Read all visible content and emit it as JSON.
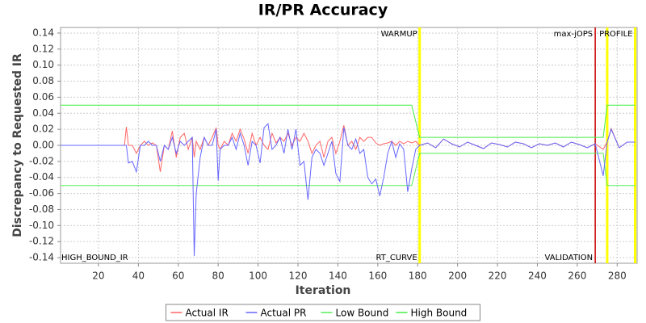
{
  "chart_data": {
    "type": "line",
    "title": "IR/PR Accuracy",
    "x_label": "Iteration",
    "y_label": "Discrepancy to Requested IR",
    "x": [
      1,
      33,
      34,
      35,
      37,
      39,
      41,
      43,
      45,
      47,
      49,
      51,
      53,
      55,
      57,
      59,
      61,
      63,
      65,
      67,
      68,
      69,
      71,
      73,
      75,
      77,
      79,
      80,
      81,
      83,
      85,
      87,
      89,
      91,
      93,
      95,
      97,
      99,
      101,
      103,
      105,
      107,
      109,
      111,
      113,
      115,
      117,
      119,
      121,
      123,
      125,
      127,
      129,
      131,
      133,
      135,
      137,
      139,
      141,
      143,
      145,
      147,
      149,
      151,
      153,
      155,
      157,
      159,
      161,
      163,
      165,
      167,
      169,
      171,
      173,
      175,
      177,
      179,
      181,
      185,
      189,
      193,
      197,
      201,
      205,
      209,
      213,
      217,
      221,
      225,
      229,
      233,
      237,
      241,
      245,
      249,
      253,
      257,
      261,
      265,
      269,
      273,
      275,
      277,
      281,
      285,
      289
    ],
    "series": [
      {
        "name": "Actual IR",
        "color": "#ff6666",
        "values": [
          0,
          0,
          0.023,
          0,
          0,
          -0.01,
          0,
          0.005,
          0,
          0.003,
          0,
          -0.033,
          0,
          -0.005,
          0.018,
          -0.015,
          0.01,
          0.015,
          -0.005,
          0.01,
          -0.015,
          0.005,
          -0.005,
          0.01,
          0,
          0.01,
          0.022,
          0,
          -0.005,
          0.005,
          0,
          0.015,
          0.005,
          0.02,
          0.008,
          -0.01,
          0.015,
          0,
          0.01,
          0,
          -0.005,
          0.015,
          0.003,
          0.01,
          0.005,
          0.015,
          0,
          0.01,
          0.005,
          0.015,
          0.005,
          -0.01,
          0,
          0.005,
          -0.015,
          0.005,
          0.01,
          -0.01,
          0.005,
          0.025,
          0,
          0.005,
          -0.005,
          0.01,
          0.005,
          0.01,
          0.01,
          0.003,
          0,
          0.002,
          0.003,
          0.005,
          0,
          0.005,
          0.002,
          0.005,
          0.003,
          0.005,
          0,
          0.003,
          -0.003,
          0.008,
          0.002,
          -0.002,
          0.004,
          0,
          -0.004,
          0.003,
          0.001,
          -0.002,
          0.004,
          0.002,
          -0.003,
          0.002,
          0,
          0.003,
          -0.002,
          0.004,
          0.001,
          -0.003,
          0.002,
          -0.005,
          0.004,
          0.021,
          -0.003,
          0.004,
          0.004
        ]
      },
      {
        "name": "Actual PR",
        "color": "#6666ff",
        "values": [
          0,
          0,
          0,
          -0.022,
          -0.02,
          -0.033,
          0,
          0,
          0.005,
          0,
          0,
          -0.02,
          0,
          -0.005,
          0.01,
          -0.01,
          0.005,
          0,
          0.005,
          0.01,
          -0.138,
          -0.06,
          -0.015,
          0.01,
          0,
          0,
          0.02,
          -0.044,
          -0.005,
          0,
          0,
          0.01,
          -0.005,
          0.015,
          0,
          -0.025,
          0.005,
          0,
          -0.022,
          0.022,
          0.027,
          -0.005,
          0,
          0.01,
          -0.01,
          0.02,
          -0.005,
          0.02,
          -0.025,
          -0.02,
          -0.068,
          -0.015,
          -0.005,
          -0.01,
          -0.025,
          -0.01,
          0.005,
          -0.035,
          -0.045,
          0.022,
          0,
          -0.005,
          0.008,
          -0.01,
          -0.005,
          -0.04,
          -0.048,
          -0.042,
          -0.063,
          -0.04,
          -0.01,
          0.005,
          -0.015,
          0.002,
          -0.005,
          -0.058,
          -0.03,
          -0.005,
          0,
          0.003,
          -0.003,
          0.008,
          0.002,
          -0.002,
          0.004,
          0,
          -0.004,
          0.003,
          0.001,
          -0.002,
          0.004,
          0.002,
          -0.003,
          0.002,
          0,
          0.003,
          -0.002,
          0.004,
          0.001,
          -0.003,
          0.002,
          -0.038,
          0.004,
          0.02,
          -0.003,
          0.004,
          0.004
        ]
      },
      {
        "name": "Low Bound",
        "color": "#55ee55",
        "values": [
          -0.05,
          -0.05,
          -0.05,
          -0.05,
          -0.05,
          -0.05,
          -0.05,
          -0.05,
          -0.05,
          -0.05,
          -0.05,
          -0.05,
          -0.05,
          -0.05,
          -0.05,
          -0.05,
          -0.05,
          -0.05,
          -0.05,
          -0.05,
          -0.05,
          -0.05,
          -0.05,
          -0.05,
          -0.05,
          -0.05,
          -0.05,
          -0.05,
          -0.05,
          -0.05,
          -0.05,
          -0.05,
          -0.05,
          -0.05,
          -0.05,
          -0.05,
          -0.05,
          -0.05,
          -0.05,
          -0.05,
          -0.05,
          -0.05,
          -0.05,
          -0.05,
          -0.05,
          -0.05,
          -0.05,
          -0.05,
          -0.05,
          -0.05,
          -0.05,
          -0.05,
          -0.05,
          -0.05,
          -0.05,
          -0.05,
          -0.05,
          -0.05,
          -0.05,
          -0.05,
          -0.05,
          -0.05,
          -0.05,
          -0.05,
          -0.05,
          -0.05,
          -0.05,
          -0.05,
          -0.05,
          -0.05,
          -0.05,
          -0.05,
          -0.05,
          -0.05,
          -0.05,
          -0.05,
          -0.05,
          -0.03,
          -0.01,
          -0.01,
          -0.01,
          -0.01,
          -0.01,
          -0.01,
          -0.01,
          -0.01,
          -0.01,
          -0.01,
          -0.01,
          -0.01,
          -0.01,
          -0.01,
          -0.01,
          -0.01,
          -0.01,
          -0.01,
          -0.01,
          -0.01,
          -0.01,
          -0.01,
          -0.01,
          -0.01,
          -0.05,
          -0.05,
          -0.05,
          -0.05,
          -0.05
        ]
      },
      {
        "name": "High Bound",
        "color": "#44ee44",
        "values": [
          0.05,
          0.05,
          0.05,
          0.05,
          0.05,
          0.05,
          0.05,
          0.05,
          0.05,
          0.05,
          0.05,
          0.05,
          0.05,
          0.05,
          0.05,
          0.05,
          0.05,
          0.05,
          0.05,
          0.05,
          0.05,
          0.05,
          0.05,
          0.05,
          0.05,
          0.05,
          0.05,
          0.05,
          0.05,
          0.05,
          0.05,
          0.05,
          0.05,
          0.05,
          0.05,
          0.05,
          0.05,
          0.05,
          0.05,
          0.05,
          0.05,
          0.05,
          0.05,
          0.05,
          0.05,
          0.05,
          0.05,
          0.05,
          0.05,
          0.05,
          0.05,
          0.05,
          0.05,
          0.05,
          0.05,
          0.05,
          0.05,
          0.05,
          0.05,
          0.05,
          0.05,
          0.05,
          0.05,
          0.05,
          0.05,
          0.05,
          0.05,
          0.05,
          0.05,
          0.05,
          0.05,
          0.05,
          0.05,
          0.05,
          0.05,
          0.05,
          0.05,
          0.03,
          0.01,
          0.01,
          0.01,
          0.01,
          0.01,
          0.01,
          0.01,
          0.01,
          0.01,
          0.01,
          0.01,
          0.01,
          0.01,
          0.01,
          0.01,
          0.01,
          0.01,
          0.01,
          0.01,
          0.01,
          0.01,
          0.01,
          0.01,
          0.01,
          0.05,
          0.05,
          0.05,
          0.05,
          0.05
        ]
      }
    ],
    "xlim": [
      1,
      290
    ],
    "xticks": [
      20,
      40,
      60,
      80,
      100,
      120,
      140,
      160,
      180,
      200,
      220,
      240,
      260,
      280
    ],
    "ylim": [
      -0.147,
      0.147
    ],
    "yticks": [
      0.14,
      0.12,
      {
        "value": 0.1,
        "label": "0.10"
      },
      0.08,
      0.06,
      0.04,
      0.02,
      {
        "value": 0,
        "label": "0.00"
      },
      -0.02,
      -0.04,
      -0.06,
      -0.08,
      {
        "value": -0.1,
        "label": "-0.10"
      },
      -0.12,
      -0.14
    ],
    "grid": true,
    "legend": "bottom",
    "markers": [
      {
        "value": 181,
        "color": "#ffff00",
        "label": "WARMUP"
      },
      {
        "value": 269,
        "color": "#cc0000",
        "label": "max-jOPS"
      },
      {
        "value": 275,
        "color": "#ffff00"
      },
      {
        "value": 289,
        "color": "#ffff00",
        "label": "PROFILE"
      }
    ],
    "annotations": [
      {
        "x": 1,
        "text": "HIGH_BOUND_IR"
      },
      {
        "x": 181,
        "text": "RT_CURVE"
      },
      {
        "x": 269,
        "text": "VALIDATION"
      }
    ]
  }
}
